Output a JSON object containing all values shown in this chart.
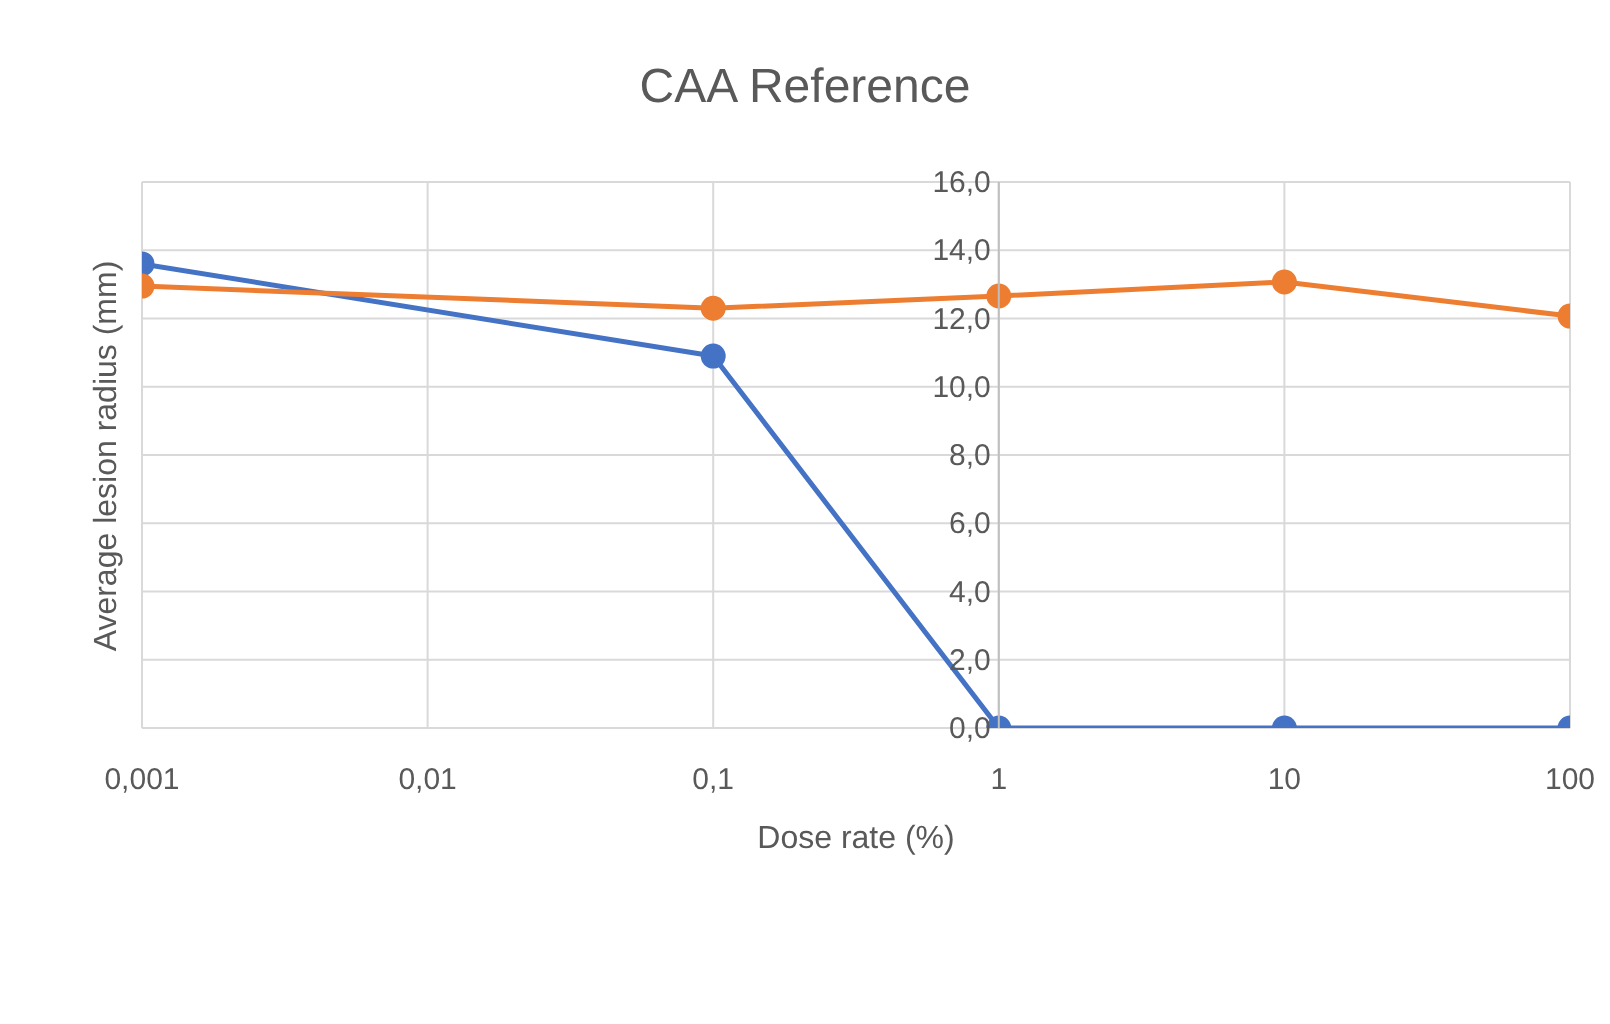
{
  "chart_data": {
    "type": "line",
    "title": "CAA Reference",
    "xlabel": "Dose rate (%)",
    "ylabel": "Average lesion radius (mm)",
    "log": "x",
    "x": [
      0.001,
      0.1,
      1,
      10,
      100
    ],
    "series": [
      {
        "color": "#4472c4",
        "values": [
          13.6,
          10.9,
          0,
          0,
          0
        ]
      },
      {
        "color": "#ed7d31",
        "values": [
          12.95,
          12.3,
          12.66,
          13.07,
          12.07
        ]
      }
    ],
    "xlim": [
      0.001,
      100
    ],
    "xticks": [
      {
        "value": 0.001,
        "label": "0,001"
      },
      {
        "value": 0.01,
        "label": "0,01"
      },
      {
        "value": 0.1,
        "label": "0,1"
      },
      {
        "value": 1,
        "label": "1"
      },
      {
        "value": 10,
        "label": "10"
      },
      {
        "value": 100,
        "label": "100"
      }
    ],
    "ylim": [
      0,
      16
    ],
    "yticks": [
      {
        "value": 0,
        "label": "0,0"
      },
      {
        "value": 2,
        "label": "2,0"
      },
      {
        "value": 4,
        "label": "4,0"
      },
      {
        "value": 6,
        "label": "6,0"
      },
      {
        "value": 8,
        "label": "8,0"
      },
      {
        "value": 10,
        "label": "10,0"
      },
      {
        "value": 12,
        "label": "12,0"
      },
      {
        "value": 14,
        "label": "14,0"
      },
      {
        "value": 16,
        "label": "16,0"
      }
    ],
    "grid": true,
    "legend": false,
    "marker": "circle",
    "line_style": "solid"
  }
}
